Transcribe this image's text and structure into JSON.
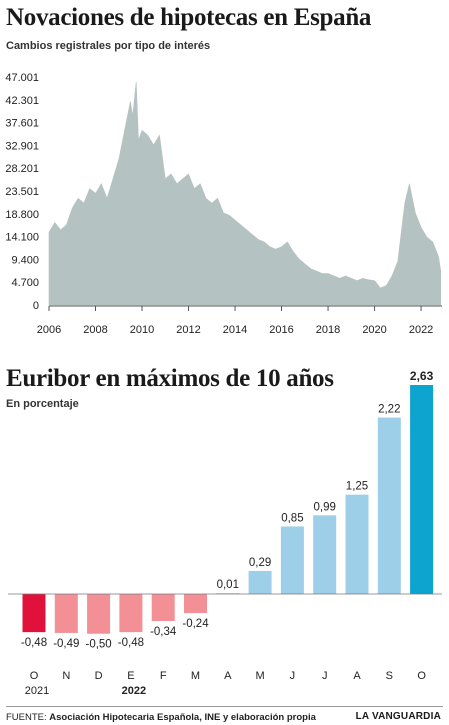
{
  "chart_data": [
    {
      "type": "area",
      "title": "Novaciones de hipotecas en España",
      "subtitle": "Cambios registrales por tipo de interés",
      "yticks": [
        0,
        4700,
        9400,
        14100,
        18800,
        23501,
        28201,
        32901,
        37601,
        42301,
        47001
      ],
      "ytick_labels": [
        "0",
        "4.700",
        "9.400",
        "14.100",
        "18.800",
        "23.501",
        "28.201",
        "32.901",
        "37.601",
        "42.301",
        "47.001"
      ],
      "ylim": [
        0,
        47001
      ],
      "xlim": [
        2006,
        2022.9
      ],
      "xticks": [
        2006,
        2008,
        2010,
        2012,
        2014,
        2016,
        2018,
        2020,
        2022
      ],
      "xtick_labels": [
        "2006",
        "2008",
        "2010",
        "2012",
        "2014",
        "2016",
        "2018",
        "2020",
        "2022"
      ],
      "color": "#b4c3c1",
      "x": [
        2006.0,
        2006.25,
        2006.5,
        2006.75,
        2007.0,
        2007.25,
        2007.5,
        2007.75,
        2008.0,
        2008.25,
        2008.5,
        2008.75,
        2009.0,
        2009.25,
        2009.5,
        2009.6,
        2009.75,
        2009.85,
        2010.0,
        2010.25,
        2010.5,
        2010.75,
        2011.0,
        2011.25,
        2011.5,
        2011.75,
        2012.0,
        2012.25,
        2012.5,
        2012.75,
        2013.0,
        2013.25,
        2013.5,
        2013.75,
        2014.0,
        2014.25,
        2014.5,
        2014.75,
        2015.0,
        2015.25,
        2015.5,
        2015.75,
        2016.0,
        2016.25,
        2016.5,
        2016.75,
        2017.0,
        2017.25,
        2017.5,
        2017.75,
        2018.0,
        2018.25,
        2018.5,
        2018.75,
        2019.0,
        2019.25,
        2019.5,
        2019.75,
        2020.0,
        2020.25,
        2020.5,
        2020.75,
        2021.0,
        2021.15,
        2021.3,
        2021.5,
        2021.75,
        2022.0,
        2022.25,
        2022.5,
        2022.75,
        2022.85
      ],
      "values": [
        15000,
        17000,
        15500,
        16500,
        20000,
        22000,
        21000,
        24000,
        23000,
        25000,
        22000,
        26000,
        30000,
        36000,
        42000,
        39000,
        46000,
        34000,
        36000,
        35000,
        33000,
        35000,
        26000,
        27000,
        25000,
        26000,
        27000,
        24000,
        25000,
        22000,
        21000,
        22000,
        19000,
        18500,
        17500,
        16500,
        15500,
        14500,
        13500,
        13000,
        12000,
        11500,
        12000,
        13000,
        11000,
        9500,
        8500,
        7500,
        7000,
        6500,
        6500,
        6000,
        5500,
        6000,
        5500,
        5000,
        5500,
        5200,
        5000,
        3500,
        4000,
        6000,
        9000,
        15000,
        21000,
        25000,
        19000,
        16000,
        14000,
        13000,
        10000,
        7000
      ]
    },
    {
      "type": "bar",
      "title": "Euribor en máximos de 10 años",
      "subtitle": "En porcentaje",
      "categories": [
        "O",
        "N",
        "D",
        "E",
        "F",
        "M",
        "A",
        "M",
        "J",
        "J",
        "A",
        "S",
        "O"
      ],
      "year_labels": [
        {
          "index": 0,
          "label": "2021"
        },
        {
          "index": 3,
          "label": "2022"
        }
      ],
      "values": [
        -0.48,
        -0.49,
        -0.5,
        -0.48,
        -0.34,
        -0.24,
        0.01,
        0.29,
        0.85,
        0.99,
        1.25,
        2.22,
        2.63
      ],
      "value_labels": [
        "-0,48",
        "-0,49",
        "-0,50",
        "-0,48",
        "-0,34",
        "-0,24",
        "0,01",
        "0,29",
        "0,85",
        "0,99",
        "1,25",
        "2,22",
        "2,63"
      ],
      "colors": {
        "negative_first": "#e0123c",
        "negative": "#f29096",
        "positive": "#9dcfe8",
        "positive_last": "#0da4d0"
      },
      "ylim": [
        -0.5,
        2.63
      ]
    }
  ],
  "footer": {
    "source_prefix": "FUENTE:",
    "source_text": "Asociación Hipotecaria Española, INE y elaboración propia",
    "brand": "LA VANGUARDIA"
  }
}
